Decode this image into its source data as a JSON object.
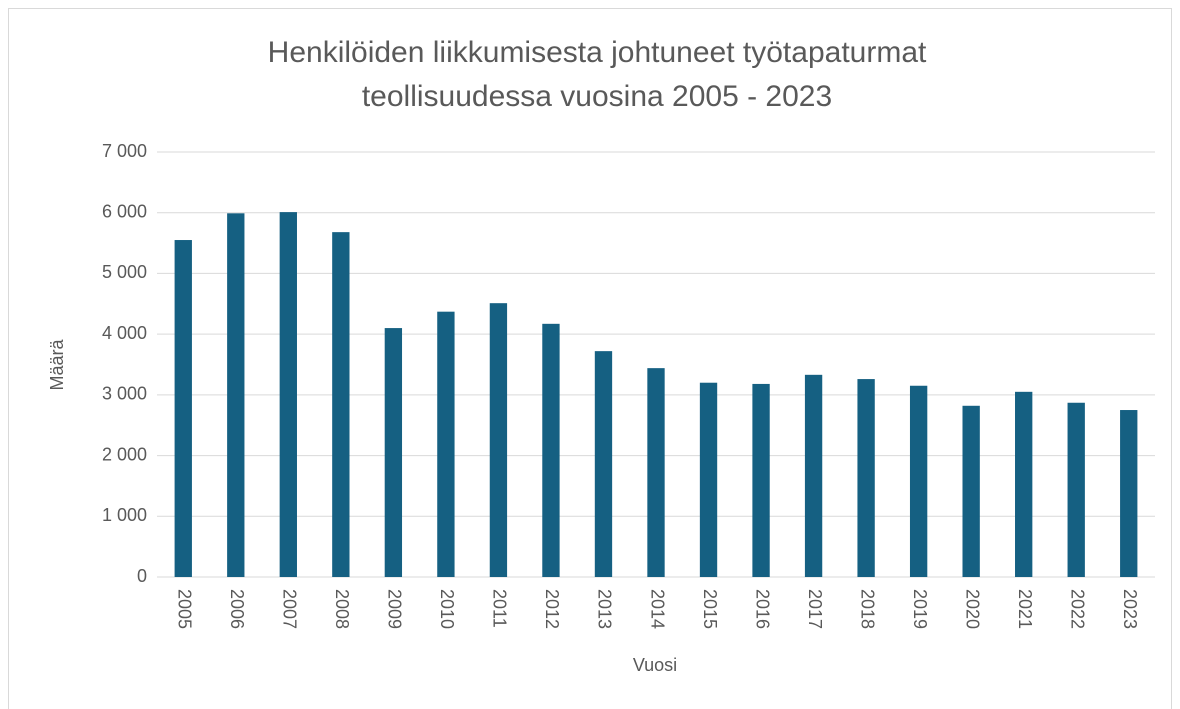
{
  "chart_data": {
    "type": "bar",
    "title": [
      "Henkilöiden liikkumisesta johtuneet työtapaturmat",
      "teollisuudessa vuosina 2005 - 2023"
    ],
    "x_label": "Vuosi",
    "y_label": "Määrä",
    "categories": [
      "2005",
      "2006",
      "2007",
      "2008",
      "2009",
      "2010",
      "2011",
      "2012",
      "2013",
      "2014",
      "2015",
      "2016",
      "2017",
      "2018",
      "2019",
      "2020",
      "2021",
      "2022",
      "2023"
    ],
    "values": [
      5550,
      5990,
      6010,
      5680,
      4100,
      4370,
      4510,
      4170,
      3720,
      3440,
      3200,
      3180,
      3330,
      3260,
      3150,
      2820,
      3050,
      2870,
      2750
    ],
    "color": "#156082",
    "ylim": [
      0,
      7000
    ],
    "yticks": [
      0,
      {
        "value": 1000,
        "label": "1 000"
      },
      {
        "value": 2000,
        "label": "2 000"
      },
      {
        "value": 3000,
        "label": "3 000"
      },
      {
        "value": 4000,
        "label": "4 000"
      },
      {
        "value": 5000,
        "label": "5 000"
      },
      {
        "value": 6000,
        "label": "6 000"
      },
      {
        "value": 7000,
        "label": "7 000"
      }
    ],
    "grid": true
  }
}
